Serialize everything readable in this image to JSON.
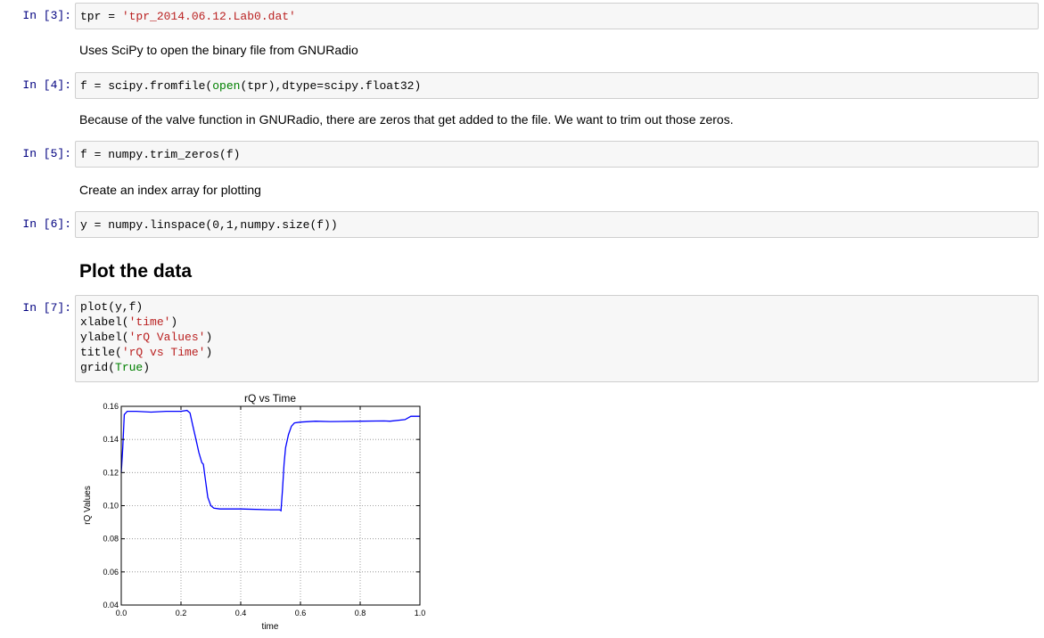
{
  "cells": [
    {
      "prompt": "In [3]:",
      "code": [
        [
          "tpr = ",
          ""
        ],
        [
          "'tpr_2014.06.12.Lab0.dat'",
          "s"
        ]
      ]
    },
    {
      "markdown": "Uses SciPy to open the binary file from GNURadio"
    },
    {
      "prompt": "In [4]:",
      "code": [
        [
          "f = scipy.fromfile(",
          ""
        ],
        [
          "open",
          "b"
        ],
        [
          "(tpr),dtype=scipy.float32)",
          ""
        ]
      ]
    },
    {
      "markdown": "Because of the valve function in GNURadio, there are zeros that get added to the file. We want to trim out those zeros."
    },
    {
      "prompt": "In [5]:",
      "code": [
        [
          "f = numpy.trim_zeros(f)",
          ""
        ]
      ]
    },
    {
      "markdown": "Create an index array for plotting"
    },
    {
      "prompt": "In [6]:",
      "code": [
        [
          "y = numpy.linspace(0,1,numpy.size(f))",
          ""
        ]
      ]
    },
    {
      "heading": "Plot the data"
    },
    {
      "prompt": "In [7]:",
      "code_lines": [
        [
          [
            "plot(y,f)",
            ""
          ]
        ],
        [
          [
            "xlabel(",
            ""
          ],
          [
            "'time'",
            "s"
          ],
          [
            ")",
            ""
          ]
        ],
        [
          [
            "ylabel(",
            ""
          ],
          [
            "'rQ Values'",
            "s"
          ],
          [
            ")",
            ""
          ]
        ],
        [
          [
            "title(",
            ""
          ],
          [
            "'rQ vs Time'",
            "s"
          ],
          [
            ")",
            ""
          ]
        ],
        [
          [
            "grid(",
            ""
          ],
          [
            "True",
            "b"
          ],
          [
            ")",
            ""
          ]
        ]
      ]
    }
  ],
  "chart_data": {
    "type": "line",
    "title": "rQ vs Time",
    "xlabel": "time",
    "ylabel": "rQ Values",
    "xlim": [
      0.0,
      1.0
    ],
    "ylim": [
      0.04,
      0.16
    ],
    "xticks": [
      "0.0",
      "0.2",
      "0.4",
      "0.6",
      "0.8",
      "1.0"
    ],
    "yticks": [
      "0.04",
      "0.06",
      "0.08",
      "0.10",
      "0.12",
      "0.14",
      "0.16"
    ],
    "grid": true,
    "color": "#0000ff",
    "x": [
      0.0,
      0.005,
      0.01,
      0.02,
      0.05,
      0.1,
      0.15,
      0.2,
      0.22,
      0.23,
      0.24,
      0.25,
      0.26,
      0.27,
      0.275,
      0.28,
      0.29,
      0.3,
      0.31,
      0.33,
      0.4,
      0.5,
      0.53,
      0.535,
      0.54,
      0.545,
      0.55,
      0.56,
      0.57,
      0.58,
      0.6,
      0.65,
      0.7,
      0.8,
      0.88,
      0.9,
      0.95,
      0.97,
      1.0
    ],
    "y": [
      0.12,
      0.135,
      0.155,
      0.157,
      0.157,
      0.1565,
      0.157,
      0.157,
      0.1575,
      0.156,
      0.148,
      0.14,
      0.132,
      0.126,
      0.125,
      0.118,
      0.105,
      0.1,
      0.0985,
      0.098,
      0.098,
      0.0975,
      0.0975,
      0.097,
      0.11,
      0.125,
      0.135,
      0.143,
      0.148,
      0.15,
      0.1505,
      0.151,
      0.1508,
      0.151,
      0.1512,
      0.151,
      0.152,
      0.154,
      0.154
    ]
  }
}
